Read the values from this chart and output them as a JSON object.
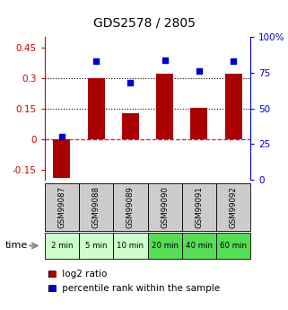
{
  "title": "GDS2578 / 2805",
  "samples": [
    "GSM99087",
    "GSM99088",
    "GSM99089",
    "GSM99090",
    "GSM99091",
    "GSM99092"
  ],
  "time_labels": [
    "2 min",
    "5 min",
    "10 min",
    "20 min",
    "40 min",
    "60 min"
  ],
  "log2_ratio": [
    -0.19,
    0.3,
    0.125,
    0.32,
    0.155,
    0.32
  ],
  "percentile_rank": [
    30,
    83,
    68,
    84,
    76,
    83
  ],
  "ylim_left": [
    -0.2,
    0.5
  ],
  "ylim_right": [
    0,
    100
  ],
  "yticks_left": [
    -0.15,
    0.0,
    0.15,
    0.3,
    0.45
  ],
  "yticks_right": [
    0,
    25,
    50,
    75,
    100
  ],
  "hline_zero_color": "#cc2222",
  "hline_zero_style": "--",
  "hline_dotted_vals": [
    0.15,
    0.3
  ],
  "bar_color": "#aa0000",
  "dot_color": "#0000cc",
  "bar_width": 0.5,
  "time_bg_colors": [
    "#ccffcc",
    "#ccffcc",
    "#ccffcc",
    "#55dd55",
    "#55dd55",
    "#55dd55"
  ],
  "sample_bg_color": "#cccccc",
  "title_fontsize": 10,
  "tick_fontsize": 7.5,
  "legend_fontsize": 7.5
}
